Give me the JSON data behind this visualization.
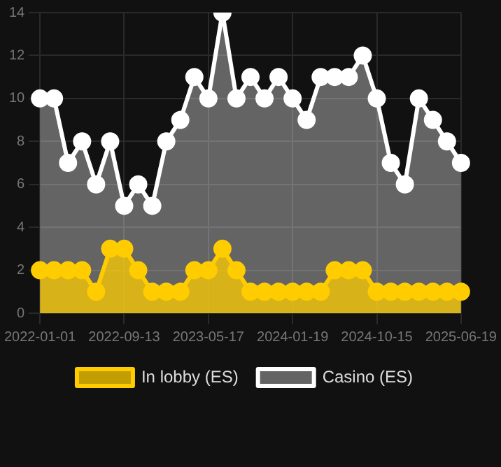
{
  "chart_data": {
    "type": "area",
    "categories": [
      "2022-01-01",
      null,
      null,
      null,
      null,
      null,
      "2022-09-13",
      null,
      null,
      null,
      null,
      null,
      "2023-05-17",
      null,
      null,
      null,
      null,
      null,
      "2024-01-19",
      null,
      null,
      null,
      null,
      null,
      "2024-10-15",
      null,
      null,
      null,
      null,
      null,
      "2025-06-19"
    ],
    "series": [
      {
        "name": "In lobby (ES)",
        "color": "#ffcc00",
        "values": [
          2,
          2,
          2,
          2,
          1,
          3,
          3,
          2,
          1,
          1,
          1,
          2,
          2,
          3,
          2,
          1,
          1,
          1,
          1,
          1,
          1,
          2,
          2,
          2,
          1,
          1,
          1,
          1,
          1,
          1,
          1
        ]
      },
      {
        "name": "Casino (ES)",
        "color": "#ffffff",
        "values": [
          10,
          10,
          7,
          8,
          6,
          8,
          5,
          6,
          5,
          8,
          9,
          11,
          10,
          14,
          10,
          11,
          10,
          11,
          10,
          9,
          11,
          11,
          11,
          12,
          10,
          7,
          6,
          10,
          9,
          8,
          7
        ]
      }
    ],
    "ylim": [
      0,
      14
    ],
    "yticks": [
      0,
      2,
      4,
      6,
      8,
      10,
      12,
      14
    ],
    "grid": true,
    "legend": "bottom",
    "marker": "circle"
  }
}
